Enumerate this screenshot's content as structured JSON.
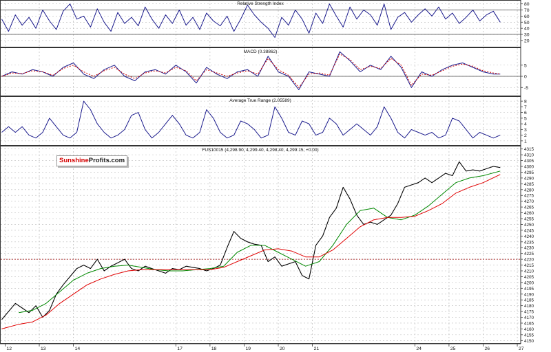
{
  "colors": {
    "rsi": "#1a1a8c",
    "macd": "#1a1a8c",
    "macd_signal": "#cc0000",
    "atr": "#1a1a8c",
    "price": "#000000",
    "ma_fast": "#008800",
    "ma_slow": "#e00000",
    "ref_line": "#990000",
    "grid": "#bbbbbb"
  },
  "logo": {
    "part1": "Sunshine",
    "part2": "Profits.com"
  },
  "x_axis": {
    "labels": [
      "12",
      "13",
      "14",
      "17",
      "18",
      "19",
      "20",
      "21",
      "24",
      "25",
      "26",
      "27"
    ],
    "range": [
      11.85,
      27.1
    ]
  },
  "chart_data": [
    {
      "type": "line",
      "panel": "rsi",
      "title": "Relative Strength Index",
      "ylim": [
        12,
        83
      ],
      "yticks": [
        80,
        70,
        60,
        50,
        40,
        30,
        20
      ],
      "ref_lines": [
        70,
        30
      ],
      "grid": true,
      "series": [
        {
          "x": [
            11.9,
            12.1,
            12.3,
            12.5,
            12.7,
            12.9,
            13.1,
            13.3,
            13.5,
            13.7,
            13.9,
            14.1,
            14.3,
            14.5,
            14.7,
            14.9,
            15.1,
            15.3,
            15.5,
            15.7,
            15.9,
            16.1,
            16.3,
            16.5,
            16.7,
            16.9,
            17.1,
            17.3,
            17.5,
            17.7,
            17.9,
            18.1,
            18.3,
            18.5,
            18.7,
            18.9,
            19.1,
            19.3,
            19.5,
            19.7,
            19.9,
            20.1,
            20.3,
            20.5,
            20.7,
            20.9,
            21.1,
            21.3,
            21.5,
            21.7,
            21.9,
            22.1,
            22.3,
            22.5,
            22.7,
            22.9,
            23.1,
            23.3,
            23.5,
            23.7,
            23.9,
            24.1,
            24.3,
            24.5,
            24.7,
            24.9,
            25.1,
            25.3,
            25.5,
            25.7,
            25.9,
            26.1,
            26.3,
            26.5
          ],
          "values": [
            55,
            35,
            62,
            45,
            58,
            40,
            70,
            52,
            38,
            68,
            80,
            55,
            60,
            42,
            72,
            50,
            35,
            66,
            48,
            58,
            44,
            75,
            55,
            40,
            62,
            48,
            70,
            45,
            58,
            38,
            65,
            52,
            44,
            60,
            35,
            55,
            78,
            62,
            50,
            40,
            25,
            58,
            45,
            70,
            55,
            32,
            65,
            48,
            80,
            60,
            42,
            75,
            55,
            70,
            62,
            45,
            80,
            38,
            58,
            66,
            50,
            62,
            72,
            60,
            75,
            55,
            65,
            48,
            58,
            70,
            52,
            62,
            68,
            50
          ]
        }
      ]
    },
    {
      "type": "line",
      "panel": "macd",
      "title": "MACD (0.38862)",
      "ylim": [
        -8,
        12
      ],
      "yticks": [
        5,
        0,
        -5
      ],
      "ref_lines": [
        0
      ],
      "grid": true,
      "series": [
        {
          "x": [
            11.9,
            12.2,
            12.5,
            12.8,
            13.1,
            13.4,
            13.7,
            14.0,
            14.3,
            14.6,
            14.9,
            15.2,
            15.5,
            15.8,
            16.1,
            16.4,
            16.7,
            17.0,
            17.3,
            17.6,
            17.9,
            18.2,
            18.5,
            18.8,
            19.1,
            19.4,
            19.7,
            20.0,
            20.3,
            20.6,
            20.9,
            21.2,
            21.5,
            21.8,
            22.1,
            22.4,
            22.7,
            23.0,
            23.3,
            23.6,
            23.9,
            24.2,
            24.5,
            24.8,
            25.1,
            25.4,
            25.7,
            26.0,
            26.3,
            26.5
          ],
          "values": [
            0,
            2,
            1,
            3,
            2,
            0,
            4,
            6,
            1,
            -1,
            3,
            5,
            0,
            -2,
            2,
            3,
            1,
            5,
            2,
            -3,
            4,
            1,
            -1,
            2,
            3,
            0,
            9,
            2,
            0,
            -6,
            2,
            1,
            0,
            11,
            7,
            2,
            5,
            3,
            9,
            4,
            -5,
            2,
            0,
            3,
            5,
            6,
            4,
            2,
            1,
            1
          ]
        },
        {
          "x": [
            11.9,
            12.2,
            12.5,
            12.8,
            13.1,
            13.4,
            13.7,
            14.0,
            14.3,
            14.6,
            14.9,
            15.2,
            15.5,
            15.8,
            16.1,
            16.4,
            16.7,
            17.0,
            17.3,
            17.6,
            17.9,
            18.2,
            18.5,
            18.8,
            19.1,
            19.4,
            19.7,
            20.0,
            20.3,
            20.6,
            20.9,
            21.2,
            21.5,
            21.8,
            22.1,
            22.4,
            22.7,
            23.0,
            23.3,
            23.6,
            23.9,
            24.2,
            24.5,
            24.8,
            25.1,
            25.4,
            25.7,
            26.0,
            26.3,
            26.5
          ],
          "values": [
            0,
            1.5,
            1.2,
            2.5,
            2,
            0.5,
            3.5,
            5,
            2,
            0,
            2.5,
            4,
            1,
            -1,
            1.5,
            2.5,
            1.5,
            4,
            2.5,
            -2,
            3,
            1.5,
            0,
            1.5,
            2.5,
            1,
            8,
            3,
            0.5,
            -5,
            1,
            1.5,
            0.5,
            10,
            7.5,
            3,
            4.5,
            3.5,
            8,
            5,
            -4,
            1,
            0.5,
            2.5,
            4.5,
            5.5,
            4.5,
            2.5,
            1.5,
            1
          ]
        }
      ]
    },
    {
      "type": "line",
      "panel": "atr",
      "title": "Average True Range (2.05589)",
      "ylim": [
        0.5,
        8.5
      ],
      "yticks": [
        8,
        7,
        6,
        5,
        4,
        3,
        2,
        1
      ],
      "grid": true,
      "series": [
        {
          "x": [
            11.9,
            12.1,
            12.3,
            12.5,
            12.7,
            12.9,
            13.1,
            13.3,
            13.5,
            13.7,
            13.9,
            14.1,
            14.3,
            14.5,
            14.7,
            14.9,
            15.1,
            15.3,
            15.5,
            15.7,
            15.9,
            16.1,
            16.3,
            16.5,
            16.7,
            16.9,
            17.1,
            17.3,
            17.5,
            17.7,
            17.9,
            18.1,
            18.3,
            18.5,
            18.7,
            18.9,
            19.1,
            19.3,
            19.5,
            19.7,
            19.9,
            20.1,
            20.3,
            20.5,
            20.7,
            20.9,
            21.1,
            21.3,
            21.5,
            21.7,
            21.9,
            22.1,
            22.3,
            22.5,
            22.7,
            22.9,
            23.1,
            23.3,
            23.5,
            23.7,
            23.9,
            24.1,
            24.3,
            24.5,
            24.7,
            24.9,
            25.1,
            25.3,
            25.5,
            25.7,
            25.9,
            26.1,
            26.3,
            26.5
          ],
          "values": [
            2.5,
            3.5,
            2.5,
            3.5,
            2,
            1.5,
            2.5,
            5,
            3.5,
            2,
            1.5,
            2.5,
            8,
            6.5,
            4,
            2.5,
            1.5,
            2,
            3,
            5.5,
            6,
            3,
            1.5,
            2.5,
            4,
            5.5,
            4,
            2,
            1.5,
            2.5,
            6.5,
            5,
            2.5,
            1.5,
            2,
            4.5,
            4,
            3,
            1.5,
            2,
            7,
            5,
            2.5,
            2,
            4.5,
            4,
            2,
            2.5,
            5,
            4,
            2,
            3,
            4,
            3,
            2,
            3.5,
            7,
            5,
            2.5,
            1.5,
            3,
            2.5,
            2,
            2.5,
            1.5,
            2,
            5,
            4.5,
            3,
            1.5,
            2.5,
            2,
            1.5,
            2
          ]
        }
      ]
    },
    {
      "type": "line",
      "panel": "price",
      "title": "FUS10015 (4,298.90, 4,299.40, 4,298.40, 4,299.15, +0.00)",
      "ylim": [
        4149,
        4316
      ],
      "yticks": [
        4315,
        4310,
        4305,
        4300,
        4295,
        4290,
        4285,
        4280,
        4275,
        4270,
        4265,
        4260,
        4255,
        4250,
        4245,
        4240,
        4235,
        4230,
        4225,
        4220,
        4215,
        4210,
        4205,
        4200,
        4195,
        4190,
        4185,
        4180,
        4175,
        4170,
        4165,
        4160,
        4155,
        4150
      ],
      "ref_lines": [
        4220
      ],
      "grid": true,
      "series": [
        {
          "x": [
            11.9,
            12.1,
            12.3,
            12.5,
            12.7,
            12.9,
            13.1,
            13.3,
            13.5,
            13.7,
            13.9,
            14.1,
            14.3,
            14.5,
            14.7,
            14.9,
            15.1,
            15.3,
            15.5,
            15.7,
            15.9,
            16.1,
            16.3,
            16.5,
            16.7,
            16.9,
            17.1,
            17.3,
            17.5,
            17.7,
            17.9,
            18.1,
            18.3,
            18.5,
            18.7,
            18.9,
            19.1,
            19.3,
            19.5,
            19.7,
            19.9,
            20.1,
            20.3,
            20.5,
            20.7,
            20.9,
            21.1,
            21.3,
            21.5,
            21.7,
            21.9,
            22.1,
            22.3,
            22.5,
            22.7,
            22.9,
            23.1,
            23.3,
            23.5,
            23.7,
            23.9,
            24.1,
            24.3,
            24.5,
            24.7,
            24.9,
            25.1,
            25.3,
            25.5,
            25.7,
            25.9,
            26.1,
            26.3,
            26.5
          ],
          "values": [
            4168,
            4175,
            4182,
            4178,
            4174,
            4180,
            4170,
            4176,
            4190,
            4198,
            4205,
            4212,
            4215,
            4212,
            4220,
            4210,
            4214,
            4217,
            4220,
            4212,
            4210,
            4214,
            4212,
            4210,
            4208,
            4212,
            4211,
            4214,
            4213,
            4212,
            4210,
            4212,
            4215,
            4230,
            4244,
            4238,
            4235,
            4233,
            4232,
            4218,
            4222,
            4214,
            4216,
            4218,
            4206,
            4203,
            4232,
            4240,
            4256,
            4264,
            4282,
            4272,
            4258,
            4250,
            4252,
            4250,
            4254,
            4258,
            4268,
            4282,
            4284,
            4286,
            4290,
            4286,
            4290,
            4294,
            4292,
            4304,
            4296,
            4297,
            4296,
            4298,
            4300,
            4299
          ]
        },
        {
          "x": [
            12.4,
            12.8,
            13.2,
            13.6,
            14.0,
            14.4,
            14.8,
            15.2,
            15.6,
            16.0,
            16.4,
            16.8,
            17.2,
            17.6,
            18.0,
            18.4,
            18.8,
            19.2,
            19.6,
            20.0,
            20.4,
            20.8,
            21.2,
            21.6,
            22.0,
            22.4,
            22.8,
            23.2,
            23.6,
            24.0,
            24.4,
            24.8,
            25.2,
            25.6,
            26.0,
            26.5
          ],
          "values": [
            4174,
            4176,
            4182,
            4192,
            4202,
            4208,
            4212,
            4214,
            4215,
            4213,
            4211,
            4210,
            4210,
            4211,
            4212,
            4214,
            4226,
            4232,
            4232,
            4226,
            4220,
            4214,
            4218,
            4232,
            4250,
            4262,
            4264,
            4256,
            4254,
            4258,
            4266,
            4276,
            4286,
            4290,
            4292,
            4296
          ]
        },
        {
          "x": [
            11.9,
            12.4,
            12.8,
            13.2,
            13.6,
            14.0,
            14.4,
            14.8,
            15.2,
            15.6,
            16.0,
            16.4,
            16.8,
            17.2,
            17.6,
            18.0,
            18.4,
            18.8,
            19.2,
            19.6,
            20.0,
            20.4,
            20.8,
            21.2,
            21.6,
            22.0,
            22.4,
            22.8,
            23.2,
            23.6,
            24.0,
            24.4,
            24.8,
            25.2,
            25.6,
            26.0,
            26.5
          ],
          "values": [
            4160,
            4164,
            4166,
            4172,
            4182,
            4190,
            4198,
            4203,
            4207,
            4210,
            4211,
            4211,
            4211,
            4211,
            4211,
            4211,
            4213,
            4218,
            4223,
            4228,
            4229,
            4227,
            4222,
            4222,
            4228,
            4238,
            4248,
            4254,
            4256,
            4256,
            4257,
            4262,
            4268,
            4277,
            4282,
            4286,
            4293
          ]
        }
      ]
    }
  ]
}
